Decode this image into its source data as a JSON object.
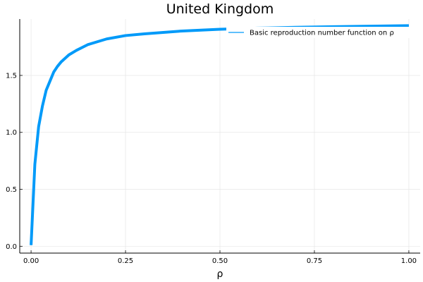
{
  "chart_data": {
    "type": "line",
    "title": "United Kingdom",
    "xlabel": "ρ",
    "ylabel": "",
    "xlim": [
      -0.03,
      1.03
    ],
    "ylim": [
      -0.06,
      1.995
    ],
    "xticks": [
      0.0,
      0.25,
      0.5,
      0.75,
      1.0
    ],
    "xtick_labels": [
      "0.00",
      "0.25",
      "0.50",
      "0.75",
      "1.00"
    ],
    "yticks": [
      0.0,
      0.5,
      1.0,
      1.5
    ],
    "ytick_labels": [
      "0.0",
      "0.5",
      "1.0",
      "1.5"
    ],
    "grid": true,
    "legend_position": "top-right",
    "series": [
      {
        "name": "Basic reproduction number function on ρ",
        "color": "#009af9",
        "x": [
          0.0,
          0.01,
          0.02,
          0.03,
          0.04,
          0.05,
          0.06,
          0.07,
          0.08,
          0.1,
          0.12,
          0.15,
          0.2,
          0.25,
          0.3,
          0.4,
          0.5,
          0.6,
          0.7,
          0.8,
          0.9,
          1.0
        ],
        "y": [
          0.01,
          0.72,
          1.05,
          1.23,
          1.37,
          1.45,
          1.53,
          1.58,
          1.62,
          1.68,
          1.72,
          1.77,
          1.82,
          1.85,
          1.865,
          1.89,
          1.905,
          1.915,
          1.922,
          1.928,
          1.932,
          1.937
        ]
      }
    ]
  }
}
